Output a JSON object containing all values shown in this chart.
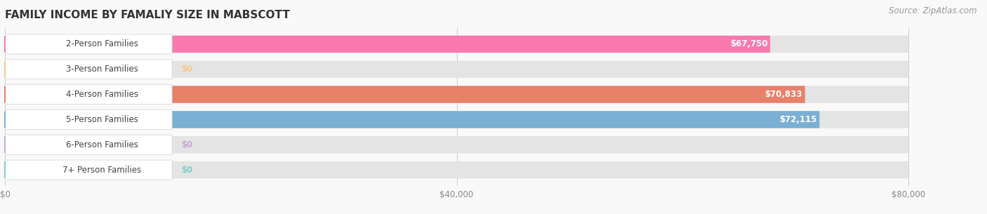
{
  "title": "FAMILY INCOME BY FAMALIY SIZE IN MABSCOTT",
  "source": "Source: ZipAtlas.com",
  "categories": [
    "2-Person Families",
    "3-Person Families",
    "4-Person Families",
    "5-Person Families",
    "6-Person Families",
    "7+ Person Families"
  ],
  "values": [
    67750,
    0,
    70833,
    72115,
    0,
    0
  ],
  "bar_colors": [
    "#F87AAE",
    "#F5C98A",
    "#E8806A",
    "#7BAFD4",
    "#C4A8D4",
    "#7ECEC8"
  ],
  "value_labels": [
    "$67,750",
    "$0",
    "$70,833",
    "$72,115",
    "$0",
    "$0"
  ],
  "value_in_bar": [
    true,
    false,
    true,
    true,
    false,
    false
  ],
  "xlim_max": 80000,
  "xticks": [
    0,
    40000,
    80000
  ],
  "xticklabels": [
    "$0",
    "$40,000",
    "$80,000"
  ],
  "bg_color": "#f0f0f0",
  "row_bg_color": "#e8e8e8",
  "title_fontsize": 11,
  "source_fontsize": 8.5,
  "label_fontsize": 8.5,
  "value_fontsize": 8.5
}
